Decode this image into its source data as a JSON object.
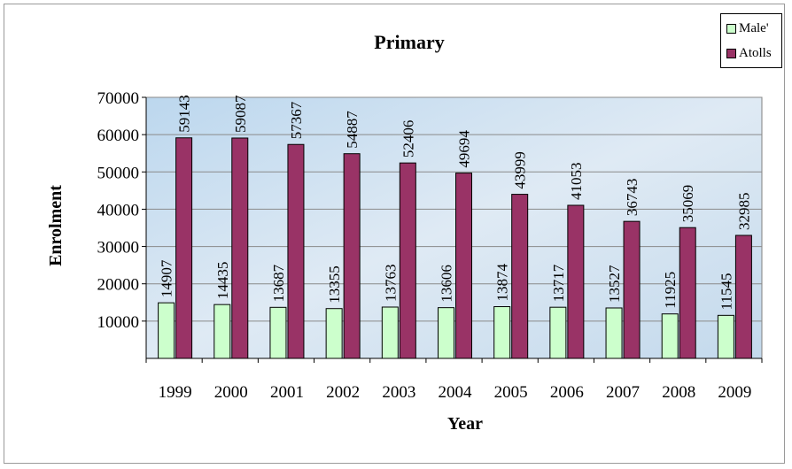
{
  "chart_data": {
    "type": "bar",
    "title": "Primary",
    "xlabel": "Year",
    "ylabel": "Enrolment",
    "categories": [
      "1999",
      "2000",
      "2001",
      "2002",
      "2003",
      "2004",
      "2005",
      "2006",
      "2007",
      "2008",
      "2009"
    ],
    "ylim": [
      0,
      70000
    ],
    "yticks": [
      "10000",
      "20000",
      "30000",
      "40000",
      "50000",
      "60000",
      "70000"
    ],
    "series": [
      {
        "name": "Male'",
        "color": "#ccffcc",
        "values": [
          14907,
          14435,
          13687,
          13355,
          13763,
          13606,
          13874,
          13717,
          13527,
          11925,
          11545
        ]
      },
      {
        "name": "Atolls",
        "color": "#993366",
        "values": [
          59143,
          59087,
          57367,
          54887,
          52406,
          49694,
          43999,
          41053,
          36743,
          35069,
          32985
        ]
      }
    ],
    "grid": true,
    "legend": "top-right"
  }
}
